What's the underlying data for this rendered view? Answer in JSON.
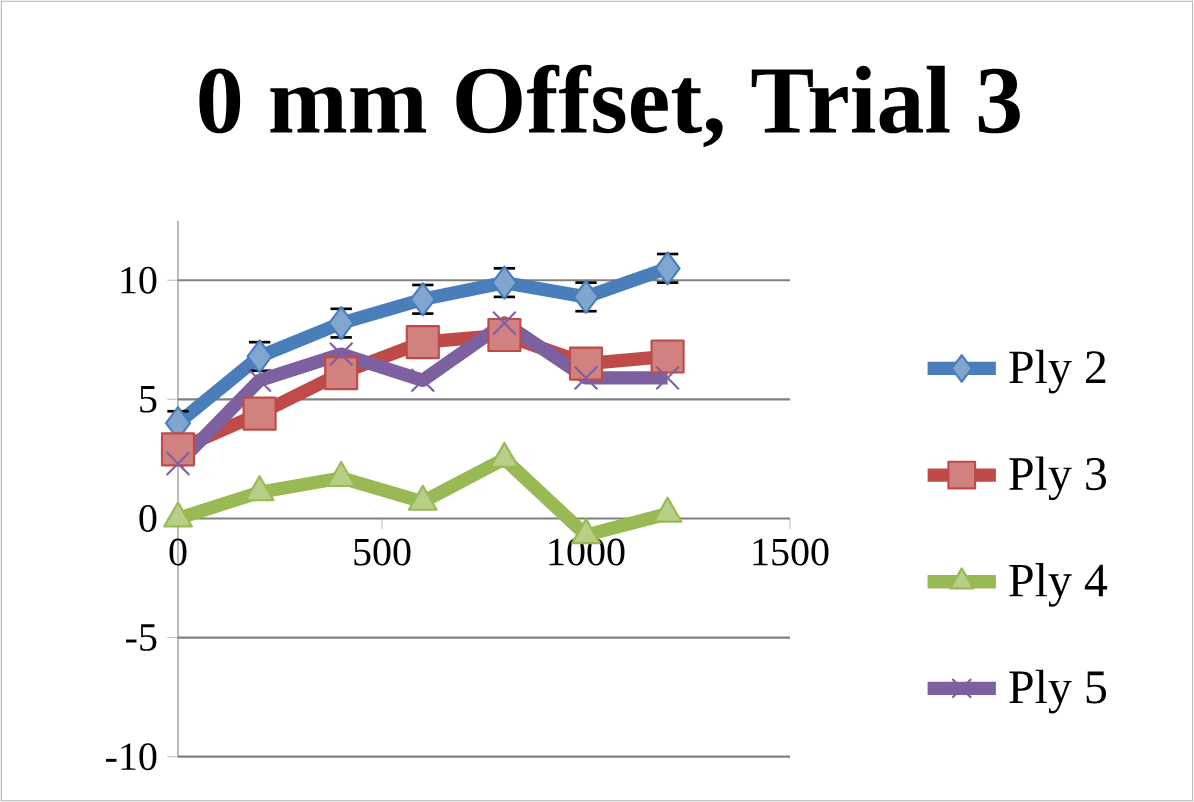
{
  "chart_data": {
    "type": "line",
    "title": "0 mm Offset, Trial 3",
    "x": [
      0,
      200,
      400,
      600,
      800,
      1000,
      1200
    ],
    "series": [
      {
        "name": "Ply 2",
        "color": "#4a7ebb",
        "marker": "diamond",
        "values": [
          4.0,
          6.8,
          8.2,
          9.2,
          9.9,
          9.3,
          10.5
        ],
        "errors": [
          0.5,
          0.6,
          0.6,
          0.6,
          0.6,
          0.6,
          0.6
        ]
      },
      {
        "name": "Ply 3",
        "color": "#be4b48",
        "marker": "square",
        "values": [
          2.9,
          4.4,
          6.1,
          7.4,
          7.7,
          6.5,
          6.8
        ]
      },
      {
        "name": "Ply 4",
        "color": "#98b954",
        "marker": "triangle",
        "values": [
          0.0,
          1.1,
          1.7,
          0.7,
          2.5,
          -0.7,
          0.2
        ]
      },
      {
        "name": "Ply 5",
        "color": "#7d60a0",
        "marker": "cross",
        "values": [
          2.3,
          5.8,
          6.9,
          5.8,
          8.2,
          5.9,
          5.9
        ]
      }
    ],
    "xlim": [
      0,
      1500
    ],
    "xticks": [
      0,
      500,
      1000,
      1500
    ],
    "ylim": [
      -10,
      12.5
    ],
    "yticks": [
      -10,
      -5,
      0,
      5,
      10
    ],
    "grid": "y",
    "legend": "right"
  }
}
